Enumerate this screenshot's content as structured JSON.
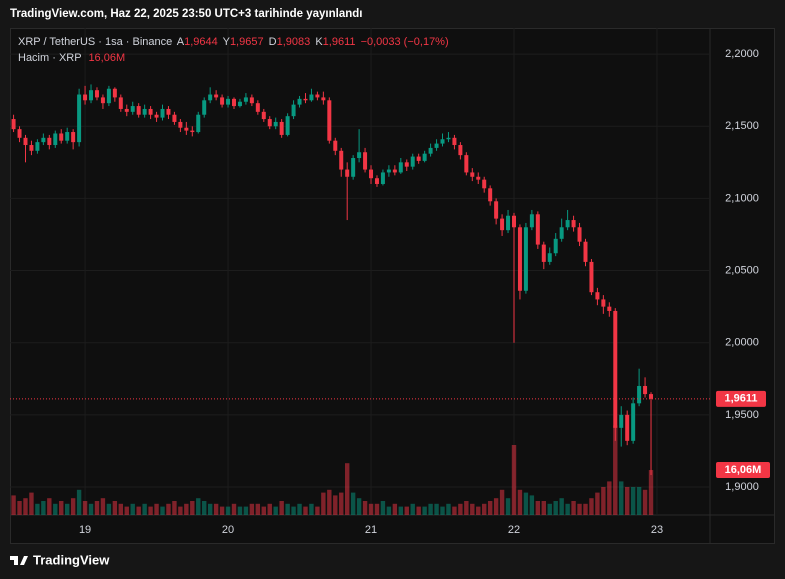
{
  "header": {
    "title": "TradingView.com, Haz 22, 2025 23:50 UTC+3 tarihinde yayınlandı"
  },
  "chart_data": {
    "type": "candlestick",
    "legend": {
      "symbol": "XRP / TetherUS · 1sa · Binance",
      "o_label": "A",
      "o": "1,9644",
      "h_label": "Y",
      "h": "1,9657",
      "l_label": "D",
      "l": "1,9083",
      "c_label": "K",
      "c": "1,9611",
      "change": "−0,0033 (−0,17%)"
    },
    "volume_legend": "Hacim · XRP",
    "volume_label": "16,06M",
    "up_color": "#089981",
    "down_color": "#f23645",
    "grid": true,
    "xlim": [
      -0.6,
      116.9
    ],
    "xticks": [
      {
        "value": 12,
        "label": "19"
      },
      {
        "value": 36,
        "label": "20"
      },
      {
        "value": 60,
        "label": "21"
      },
      {
        "value": 84,
        "label": "22"
      },
      {
        "value": 108,
        "label": "23"
      }
    ],
    "ylim": [
      1.8806,
      2.2181
    ],
    "yticks": [
      {
        "value": 1.9,
        "label": "1,9000"
      },
      {
        "value": 1.95,
        "label": "1,9500"
      },
      {
        "value": 2.0,
        "label": "2,0000"
      },
      {
        "value": 2.05,
        "label": "2,0500"
      },
      {
        "value": 2.1,
        "label": "2,1000"
      },
      {
        "value": 2.15,
        "label": "2,1500"
      },
      {
        "value": 2.2,
        "label": "2,2000"
      }
    ],
    "open": [
      2.155,
      2.148,
      2.142,
      2.137,
      2.133,
      2.139,
      2.142,
      2.137,
      2.145,
      2.14,
      2.146,
      2.139,
      2.172,
      2.168,
      2.175,
      2.17,
      2.166,
      2.176,
      2.17,
      2.162,
      2.16,
      2.164,
      2.158,
      2.162,
      2.158,
      2.156,
      2.162,
      2.158,
      2.153,
      2.149,
      2.147,
      2.146,
      2.158,
      2.168,
      2.172,
      2.17,
      2.165,
      2.169,
      2.164,
      2.167,
      2.17,
      2.166,
      2.16,
      2.155,
      2.15,
      2.153,
      2.144,
      2.157,
      2.165,
      2.169,
      2.168,
      2.172,
      2.17,
      2.168,
      2.14,
      2.133,
      2.12,
      2.115,
      2.128,
      2.132,
      2.12,
      2.114,
      2.11,
      2.118,
      2.12,
      2.118,
      2.125,
      2.122,
      2.129,
      2.126,
      2.131,
      2.135,
      2.138,
      2.141,
      2.142,
      2.137,
      2.13,
      2.118,
      2.115,
      2.113,
      2.107,
      2.098,
      2.086,
      2.078,
      2.088,
      2.08,
      2.036,
      2.08,
      2.089,
      2.068,
      2.056,
      2.062,
      2.072,
      2.08,
      2.085,
      2.08,
      2.07,
      2.056,
      2.035,
      2.03,
      2.025,
      2.022,
      1.941,
      1.95,
      1.932,
      1.958,
      1.97,
      1.9644
    ],
    "high": [
      2.158,
      2.15,
      2.144,
      2.14,
      2.141,
      2.145,
      2.144,
      2.147,
      2.148,
      2.149,
      2.148,
      2.176,
      2.178,
      2.179,
      2.177,
      2.172,
      2.178,
      2.177,
      2.172,
      2.165,
      2.167,
      2.166,
      2.165,
      2.164,
      2.16,
      2.165,
      2.164,
      2.16,
      2.155,
      2.153,
      2.15,
      2.16,
      2.17,
      2.177,
      2.175,
      2.172,
      2.171,
      2.17,
      2.169,
      2.173,
      2.172,
      2.168,
      2.162,
      2.157,
      2.156,
      2.155,
      2.159,
      2.168,
      2.171,
      2.173,
      2.176,
      2.174,
      2.174,
      2.17,
      2.142,
      2.135,
      2.125,
      2.13,
      2.148,
      2.135,
      2.123,
      2.116,
      2.12,
      2.123,
      2.123,
      2.128,
      2.127,
      2.131,
      2.131,
      2.133,
      2.138,
      2.141,
      2.145,
      2.146,
      2.144,
      2.139,
      2.132,
      2.121,
      2.118,
      2.115,
      2.109,
      2.1,
      2.089,
      2.092,
      2.09,
      2.082,
      2.083,
      2.092,
      2.091,
      2.07,
      2.066,
      2.076,
      2.086,
      2.092,
      2.088,
      2.083,
      2.072,
      2.058,
      2.038,
      2.033,
      2.028,
      2.024,
      1.956,
      1.953,
      1.962,
      1.982,
      1.976,
      1.9657
    ],
    "low": [
      2.146,
      2.139,
      2.125,
      2.13,
      2.131,
      2.137,
      2.134,
      2.135,
      2.138,
      2.138,
      2.134,
      2.136,
      2.165,
      2.166,
      2.168,
      2.162,
      2.164,
      2.167,
      2.16,
      2.157,
      2.158,
      2.156,
      2.156,
      2.155,
      2.153,
      2.154,
      2.155,
      2.151,
      2.146,
      2.144,
      2.143,
      2.145,
      2.156,
      2.166,
      2.168,
      2.163,
      2.163,
      2.162,
      2.163,
      2.165,
      2.164,
      2.158,
      2.153,
      2.148,
      2.148,
      2.142,
      2.143,
      2.155,
      2.163,
      2.166,
      2.167,
      2.168,
      2.165,
      2.138,
      2.13,
      2.115,
      2.085,
      2.113,
      2.125,
      2.118,
      2.11,
      2.108,
      2.109,
      2.115,
      2.116,
      2.117,
      2.119,
      2.12,
      2.124,
      2.125,
      2.129,
      2.133,
      2.136,
      2.139,
      2.134,
      2.127,
      2.116,
      2.112,
      2.11,
      2.104,
      2.095,
      2.082,
      2.074,
      2.076,
      2.0,
      2.03,
      2.034,
      2.078,
      2.065,
      2.051,
      2.054,
      2.06,
      2.07,
      2.078,
      2.077,
      2.067,
      2.053,
      2.033,
      2.026,
      2.02,
      2.018,
      1.932,
      1.928,
      1.929,
      1.93,
      1.956,
      1.962,
      1.9083
    ],
    "close": [
      2.148,
      2.142,
      2.137,
      2.133,
      2.139,
      2.142,
      2.137,
      2.145,
      2.14,
      2.146,
      2.139,
      2.172,
      2.168,
      2.175,
      2.17,
      2.166,
      2.176,
      2.17,
      2.162,
      2.16,
      2.164,
      2.158,
      2.162,
      2.158,
      2.156,
      2.162,
      2.158,
      2.153,
      2.149,
      2.147,
      2.146,
      2.158,
      2.168,
      2.172,
      2.17,
      2.165,
      2.169,
      2.164,
      2.167,
      2.17,
      2.166,
      2.16,
      2.155,
      2.15,
      2.153,
      2.144,
      2.157,
      2.165,
      2.169,
      2.168,
      2.172,
      2.17,
      2.168,
      2.14,
      2.133,
      2.12,
      2.115,
      2.128,
      2.132,
      2.12,
      2.114,
      2.11,
      2.118,
      2.12,
      2.118,
      2.125,
      2.122,
      2.129,
      2.126,
      2.131,
      2.135,
      2.138,
      2.141,
      2.142,
      2.137,
      2.13,
      2.118,
      2.115,
      2.113,
      2.107,
      2.098,
      2.086,
      2.078,
      2.088,
      2.08,
      2.036,
      2.08,
      2.089,
      2.068,
      2.056,
      2.062,
      2.072,
      2.08,
      2.085,
      2.08,
      2.07,
      2.056,
      2.035,
      2.03,
      2.025,
      2.022,
      1.941,
      1.95,
      1.932,
      1.958,
      1.97,
      1.9644,
      1.9611
    ],
    "volume": [
      7,
      5,
      6,
      8,
      4,
      5,
      6,
      4,
      5,
      4,
      6,
      9,
      5,
      4,
      5,
      6,
      4,
      5,
      4,
      3,
      4,
      3,
      4,
      3,
      4,
      3,
      4,
      5,
      3,
      4,
      5,
      6,
      5,
      4,
      4,
      3,
      3,
      4,
      3,
      3,
      4,
      4,
      3,
      4,
      3,
      5,
      4,
      3,
      4,
      3,
      4,
      3,
      8,
      9,
      7,
      8,
      18.5,
      8,
      6,
      5,
      4,
      4,
      5,
      3,
      4,
      3,
      3,
      4,
      3,
      3,
      4,
      4,
      3,
      4,
      3,
      4,
      5,
      4,
      3,
      4,
      5,
      6,
      9,
      6,
      25,
      9,
      8,
      7,
      5,
      5,
      4,
      5,
      6,
      4,
      5,
      4,
      4,
      6,
      8,
      10,
      12,
      32,
      12,
      10,
      10,
      10,
      9,
      16.06
    ]
  },
  "footer": {
    "brand": "TradingView"
  }
}
